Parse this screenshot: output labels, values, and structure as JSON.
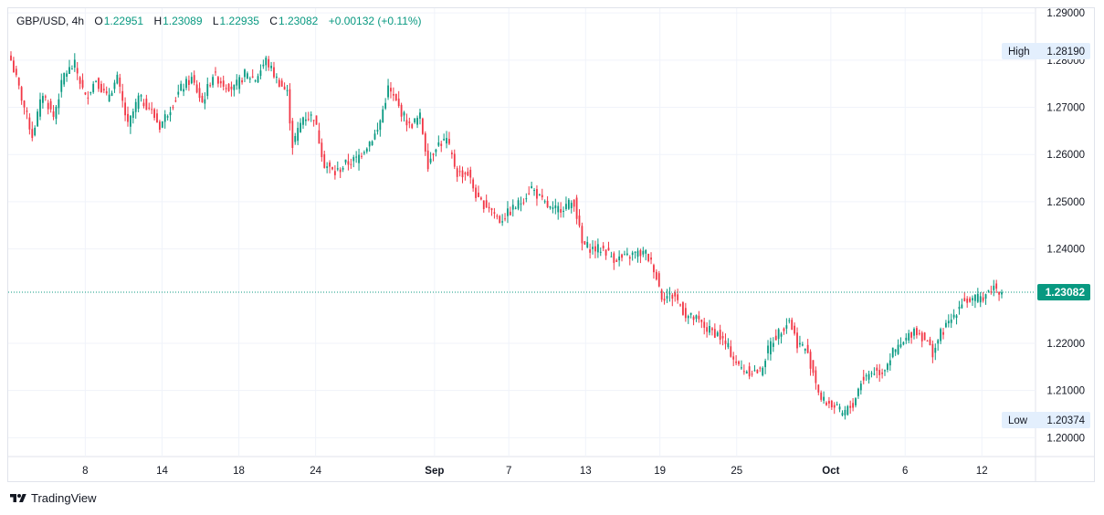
{
  "legend": {
    "symbol": "GBP/USD, 4h",
    "o_label": "O",
    "o_value": "1.22951",
    "h_label": "H",
    "h_value": "1.23089",
    "l_label": "L",
    "l_value": "1.22935",
    "c_label": "C",
    "c_value": "1.23082",
    "change": "+0.00132 (+0.11%)"
  },
  "branding": {
    "text": "TradingView",
    "icon": "tradingview-logo-icon"
  },
  "colors": {
    "up": "#089981",
    "down": "#f23645",
    "last_price_bg": "#089981",
    "grid": "#f0f3fa",
    "tag_bg": "#e3effd"
  },
  "chart_data": {
    "type": "candlestick",
    "symbol": "GBP/USD",
    "interval": "4h",
    "ylim": [
      1.196,
      1.291
    ],
    "y_ticks": [
      "1.29000",
      "1.28000",
      "1.27000",
      "1.26000",
      "1.25000",
      "1.24000",
      "1.22000",
      "1.21000",
      "1.20000"
    ],
    "x_ticks": [
      {
        "label": "8",
        "bold": false
      },
      {
        "label": "14",
        "bold": false
      },
      {
        "label": "18",
        "bold": false
      },
      {
        "label": "24",
        "bold": false
      },
      {
        "label": "Sep",
        "bold": true
      },
      {
        "label": "7",
        "bold": false
      },
      {
        "label": "13",
        "bold": false
      },
      {
        "label": "19",
        "bold": false
      },
      {
        "label": "25",
        "bold": false
      },
      {
        "label": "Oct",
        "bold": true
      },
      {
        "label": "6",
        "bold": false
      },
      {
        "label": "12",
        "bold": false
      }
    ],
    "high_marker": {
      "label": "High",
      "value": "1.28190"
    },
    "low_marker": {
      "label": "Low",
      "value": "1.20374"
    },
    "last_price": {
      "value": "1.23082"
    },
    "grid": true,
    "close_path": [
      [
        0,
        1.28
      ],
      [
        4,
        1.272
      ],
      [
        8,
        1.264
      ],
      [
        12,
        1.273
      ],
      [
        16,
        1.268
      ],
      [
        20,
        1.277
      ],
      [
        24,
        1.279
      ],
      [
        28,
        1.272
      ],
      [
        32,
        1.276
      ],
      [
        36,
        1.272
      ],
      [
        40,
        1.276
      ],
      [
        44,
        1.266
      ],
      [
        48,
        1.272
      ],
      [
        52,
        1.27
      ],
      [
        56,
        1.266
      ],
      [
        60,
        1.27
      ],
      [
        64,
        1.274
      ],
      [
        68,
        1.276
      ],
      [
        72,
        1.271
      ],
      [
        76,
        1.277
      ],
      [
        80,
        1.275
      ],
      [
        84,
        1.274
      ],
      [
        88,
        1.277
      ],
      [
        92,
        1.276
      ],
      [
        96,
        1.28
      ],
      [
        100,
        1.276
      ],
      [
        104,
        1.273
      ],
      [
        106,
        1.262
      ],
      [
        110,
        1.268
      ],
      [
        114,
        1.268
      ],
      [
        118,
        1.258
      ],
      [
        122,
        1.256
      ],
      [
        126,
        1.258
      ],
      [
        130,
        1.259
      ],
      [
        134,
        1.262
      ],
      [
        138,
        1.265
      ],
      [
        142,
        1.274
      ],
      [
        146,
        1.27
      ],
      [
        150,
        1.266
      ],
      [
        154,
        1.268
      ],
      [
        157,
        1.258
      ],
      [
        160,
        1.262
      ],
      [
        164,
        1.263
      ],
      [
        168,
        1.256
      ],
      [
        172,
        1.256
      ],
      [
        176,
        1.25
      ],
      [
        180,
        1.249
      ],
      [
        184,
        1.246
      ],
      [
        188,
        1.248
      ],
      [
        192,
        1.25
      ],
      [
        196,
        1.253
      ],
      [
        200,
        1.25
      ],
      [
        204,
        1.248
      ],
      [
        208,
        1.249
      ],
      [
        212,
        1.25
      ],
      [
        215,
        1.241
      ],
      [
        219,
        1.24
      ],
      [
        223,
        1.24
      ],
      [
        227,
        1.238
      ],
      [
        231,
        1.238
      ],
      [
        235,
        1.239
      ],
      [
        239,
        1.239
      ],
      [
        242,
        1.236
      ],
      [
        245,
        1.23
      ],
      [
        250,
        1.23
      ],
      [
        254,
        1.226
      ],
      [
        258,
        1.225
      ],
      [
        262,
        1.223
      ],
      [
        266,
        1.222
      ],
      [
        270,
        1.219
      ],
      [
        274,
        1.215
      ],
      [
        278,
        1.214
      ],
      [
        282,
        1.214
      ],
      [
        286,
        1.22
      ],
      [
        290,
        1.223
      ],
      [
        293,
        1.225
      ],
      [
        296,
        1.22
      ],
      [
        299,
        1.219
      ],
      [
        302,
        1.214
      ],
      [
        305,
        1.208
      ],
      [
        309,
        1.207
      ],
      [
        313,
        1.205
      ],
      [
        317,
        1.207
      ],
      [
        320,
        1.212
      ],
      [
        324,
        1.214
      ],
      [
        328,
        1.214
      ],
      [
        332,
        1.218
      ],
      [
        336,
        1.22
      ],
      [
        340,
        1.223
      ],
      [
        344,
        1.221
      ],
      [
        347,
        1.218
      ],
      [
        350,
        1.222
      ],
      [
        354,
        1.225
      ],
      [
        358,
        1.229
      ],
      [
        362,
        1.229
      ],
      [
        366,
        1.23
      ],
      [
        370,
        1.232
      ],
      [
        373,
        1.2308
      ]
    ]
  }
}
